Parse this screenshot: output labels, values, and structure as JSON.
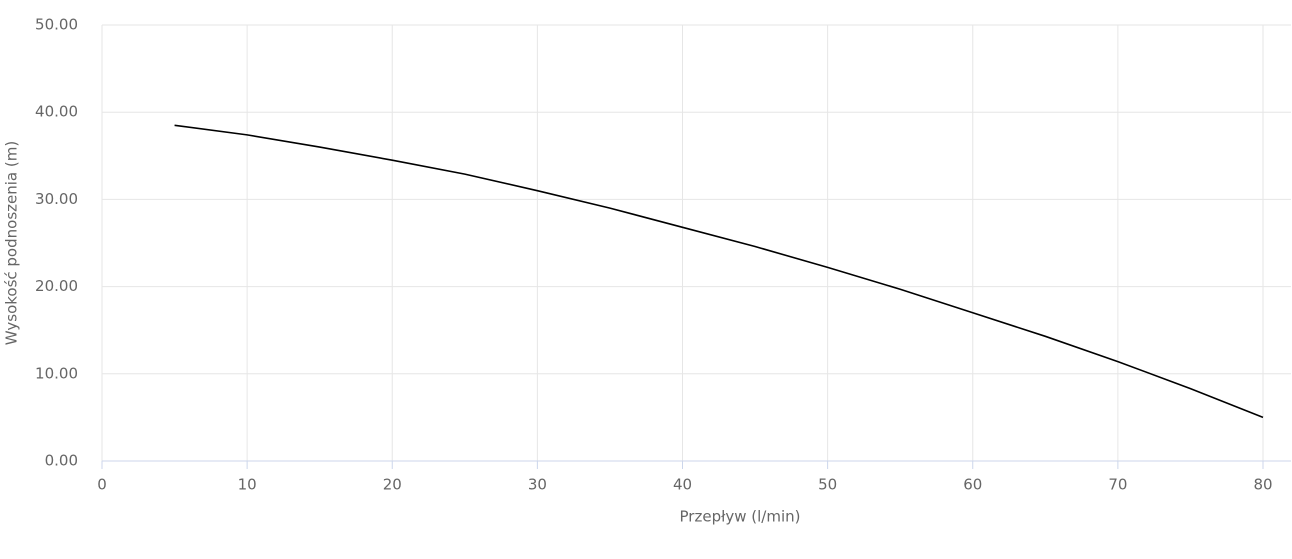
{
  "chart_data": {
    "type": "line",
    "xlabel": "Przepływ (l/min)",
    "ylabel": "Wysokość podnoszenia (m)",
    "x": [
      5,
      10,
      15,
      20,
      25,
      30,
      35,
      40,
      45,
      50,
      55,
      60,
      65,
      70,
      75,
      80
    ],
    "values": [
      38.5,
      37.4,
      36.0,
      34.5,
      32.9,
      31.0,
      29.0,
      26.8,
      24.6,
      22.2,
      19.7,
      17.0,
      14.3,
      11.4,
      8.3,
      5.0
    ],
    "color": "#000000",
    "xlim": [
      0,
      80
    ],
    "xticks": [
      0,
      10,
      20,
      30,
      40,
      50,
      60,
      70,
      80
    ],
    "ylim": [
      0,
      50
    ],
    "yticks": [
      {
        "value": 0,
        "label": "0.00"
      },
      {
        "value": 10,
        "label": "10.00"
      },
      {
        "value": 20,
        "label": "20.00"
      },
      {
        "value": 30,
        "label": "30.00"
      },
      {
        "value": 40,
        "label": "40.00"
      },
      {
        "value": 50,
        "label": "50.00"
      }
    ],
    "grid": true
  }
}
